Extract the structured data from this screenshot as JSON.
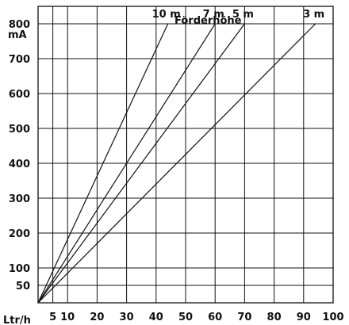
{
  "chart_data": {
    "type": "line",
    "title": "",
    "xlabel": "Ltr/h",
    "ylabel": "mA",
    "xlim": [
      0,
      100
    ],
    "ylim": [
      0,
      850
    ],
    "x_ticks": [
      5,
      10,
      20,
      30,
      40,
      50,
      60,
      70,
      80,
      90,
      100
    ],
    "x_tick_labels": [
      "5",
      "10",
      "20",
      "30",
      "40",
      "50",
      "60",
      "70",
      "80",
      "90",
      "100"
    ],
    "y_ticks": [
      50,
      100,
      200,
      300,
      400,
      500,
      600,
      700,
      800
    ],
    "y_tick_labels": [
      "50",
      "100",
      "200",
      "300",
      "400",
      "500",
      "600",
      "700",
      "800"
    ],
    "grid": true,
    "legend_title": "Förderhöhe",
    "series": [
      {
        "name": "10 m",
        "x": [
          0,
          44
        ],
        "y": [
          0,
          800
        ]
      },
      {
        "name": "7 m",
        "x": [
          0,
          60
        ],
        "y": [
          0,
          800
        ]
      },
      {
        "name": "5 m",
        "x": [
          0,
          70
        ],
        "y": [
          0,
          800
        ]
      },
      {
        "name": "3 m",
        "x": [
          0,
          94
        ],
        "y": [
          0,
          800
        ]
      }
    ]
  }
}
